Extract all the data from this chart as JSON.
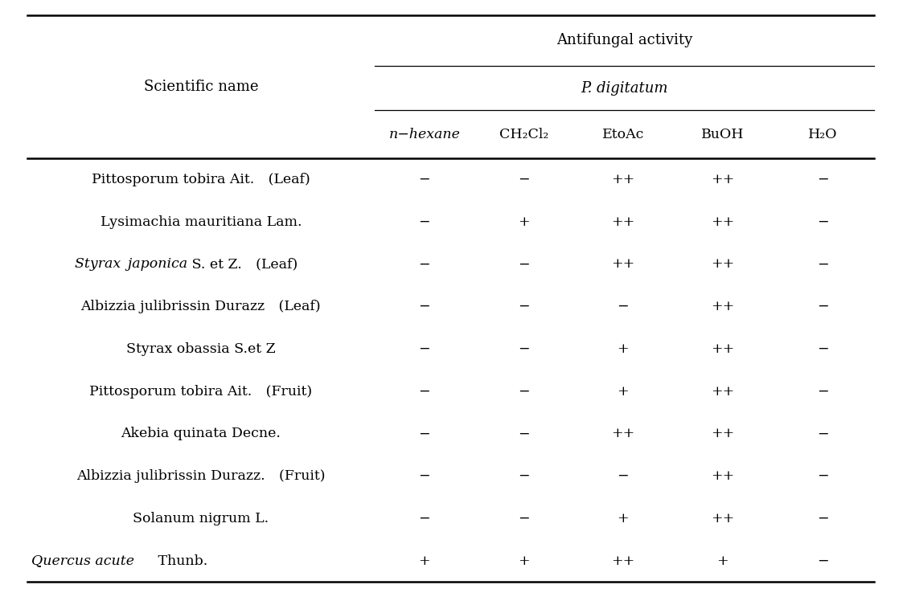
{
  "title_main": "Antifungal activity",
  "title_sub": "P. digitatum",
  "col_header_left": "Scientific name",
  "col_headers": [
    "n−hexane",
    "CH₂Cl₂",
    "EtoAc",
    "BuOH",
    "H₂O"
  ],
  "rows": [
    [
      "Pittosporum tobira Ait. (Leaf)",
      "−",
      "−",
      "++",
      "++",
      "−"
    ],
    [
      "Lysimachia mauritiana Lam.",
      "−",
      "+",
      "++",
      "++",
      "−"
    ],
    [
      "Styrax japonica S. et Z. (Leaf)",
      "−",
      "−",
      "++",
      "++",
      "−"
    ],
    [
      "Albizzia julibrissin Durazz (Leaf)",
      "−",
      "−",
      "−",
      "++",
      "−"
    ],
    [
      "Styrax obassia S.et Z",
      "−",
      "−",
      "+",
      "++",
      "−"
    ],
    [
      "Pittosporum tobira Ait. (Fruit)",
      "−",
      "−",
      "+",
      "++",
      "−"
    ],
    [
      "Akebia quinata Decne.",
      "−",
      "−",
      "++",
      "++",
      "−"
    ],
    [
      "Albizzia julibrissin Durazz. (Fruit)",
      "−",
      "−",
      "−",
      "++",
      "−"
    ],
    [
      "Solanum nigrum L.",
      "−",
      "−",
      "+",
      "++",
      "−"
    ],
    [
      "Quercus acute Thunb.",
      "+",
      "+",
      "++",
      "+",
      "−"
    ]
  ],
  "bg_color": "#ffffff",
  "text_color": "#000000",
  "line_color": "#000000",
  "fontsize_title": 13,
  "fontsize_body": 12.5,
  "fig_width": 11.23,
  "fig_height": 7.43
}
